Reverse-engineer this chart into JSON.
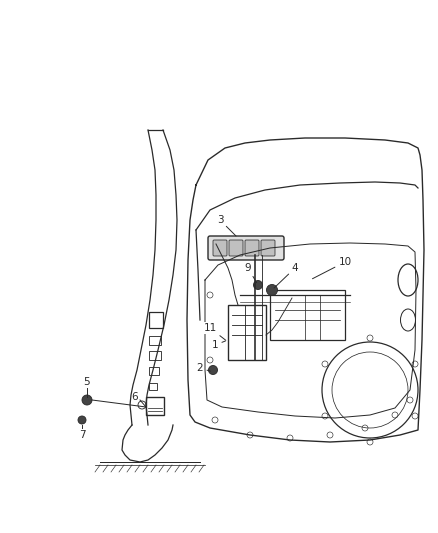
{
  "bg_color": "#ffffff",
  "line_color": "#2a2a2a",
  "figsize": [
    4.38,
    5.33
  ],
  "dpi": 100,
  "lw": 0.9
}
